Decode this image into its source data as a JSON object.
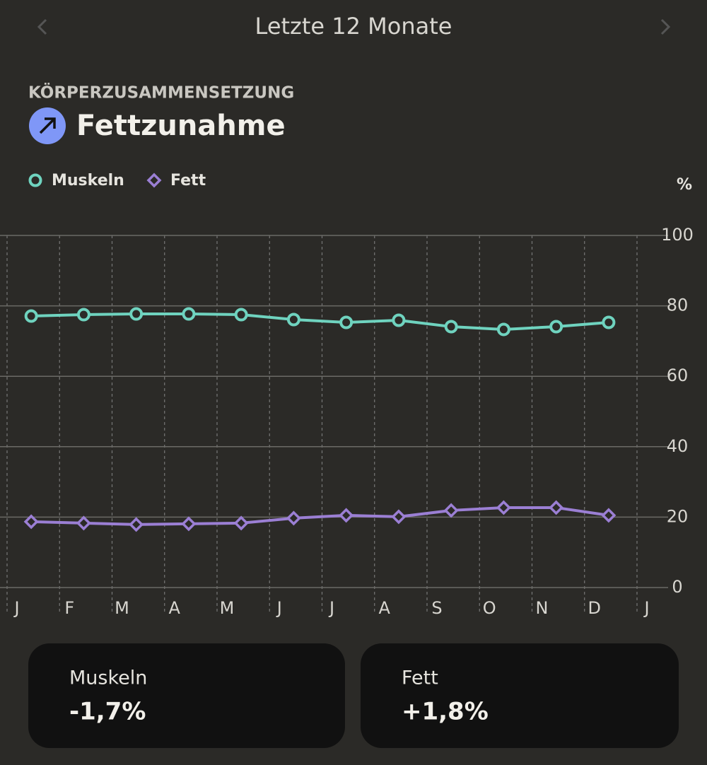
{
  "ui": {
    "period": "Letzte 12 Monate",
    "section": "KÖRPERZUSAMMENSETZUNG",
    "headline": "Fettzunahme",
    "cards": [
      {
        "label": "Muskeln",
        "value": "-1,7%"
      },
      {
        "label": "Fett",
        "value": "+1,8%"
      }
    ]
  },
  "chart_data": {
    "type": "line",
    "y_label": "%",
    "categories": [
      "J",
      "F",
      "M",
      "A",
      "M",
      "J",
      "J",
      "A",
      "S",
      "O",
      "N",
      "D",
      "J"
    ],
    "series": [
      {
        "name": "Muskeln",
        "color": "#6fd3bf",
        "marker": "circle",
        "values": [
          77.1,
          77.5,
          77.7,
          77.7,
          77.5,
          76.1,
          75.3,
          75.9,
          74.1,
          73.3,
          74.1,
          75.3,
          null
        ]
      },
      {
        "name": "Fett",
        "color": "#9b7fd4",
        "marker": "diamond",
        "values": [
          18.7,
          18.3,
          17.9,
          18.1,
          18.3,
          19.7,
          20.5,
          20.1,
          21.9,
          22.7,
          22.7,
          20.5,
          null
        ]
      }
    ],
    "ylim": [
      0,
      100
    ],
    "yticks": [
      0,
      20,
      40,
      60,
      80,
      100
    ],
    "grid": true
  }
}
